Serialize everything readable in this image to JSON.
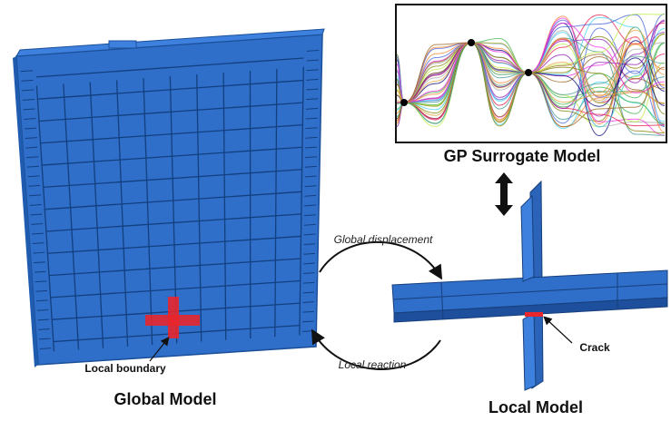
{
  "gp_panel": {
    "title": "GP Surrogate Model"
  },
  "arrows": {
    "forward_label": "Global displacement",
    "backward_label": "Local reaction"
  },
  "global_model": {
    "title": "Global Model",
    "annotation": "Local boundary"
  },
  "local_model": {
    "title": "Local Model",
    "annotation": "Crack"
  }
}
